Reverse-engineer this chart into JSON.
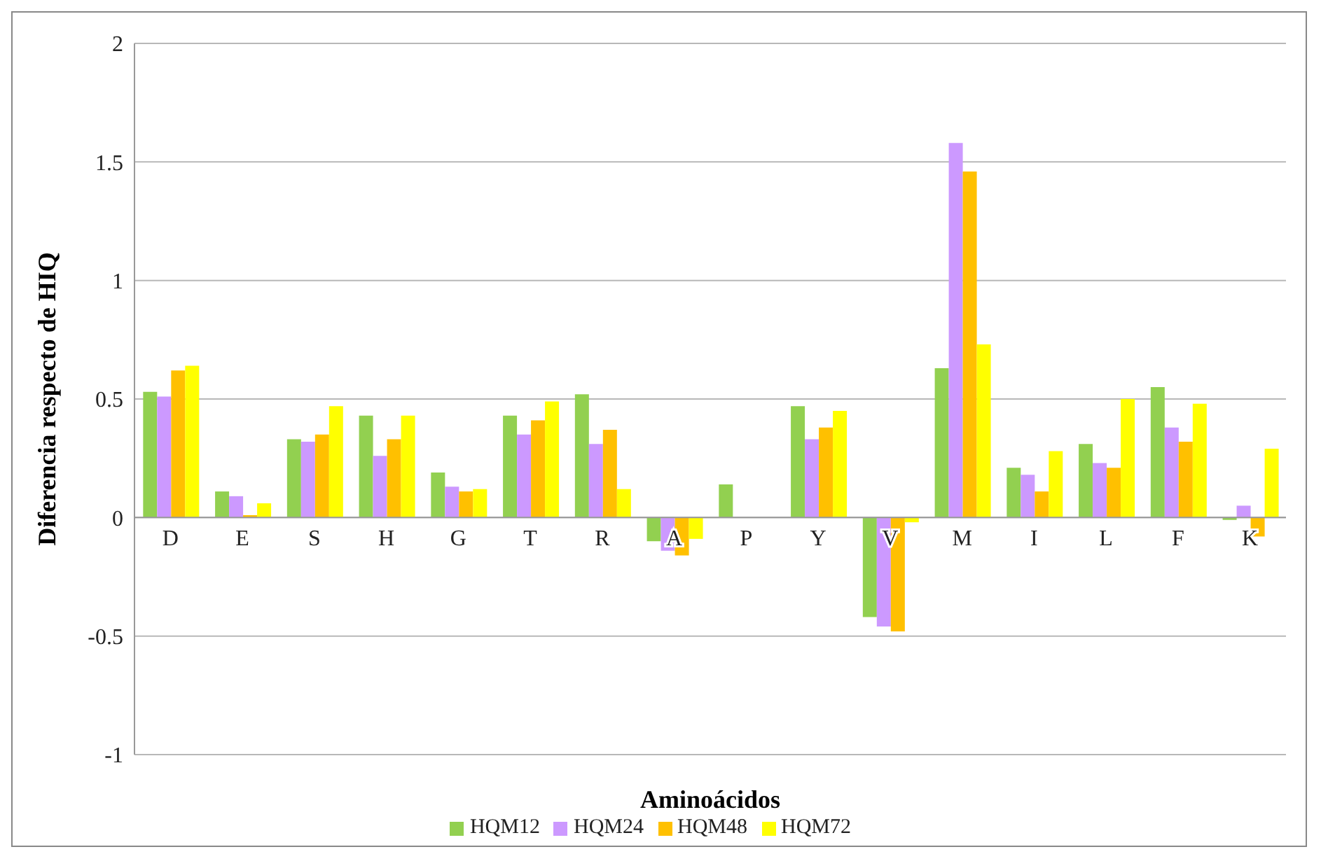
{
  "chart_data": {
    "type": "bar",
    "xlabel": "Aminoácidos",
    "ylabel": "Diferencia respecto de HIQ",
    "categories": [
      "D",
      "E",
      "S",
      "H",
      "G",
      "T",
      "R",
      "A",
      "P",
      "Y",
      "V",
      "M",
      "I",
      "L",
      "F",
      "K"
    ],
    "series": [
      {
        "name": "HQM12",
        "color": "#92d050",
        "values": [
          0.53,
          0.11,
          0.33,
          0.43,
          0.19,
          0.43,
          0.52,
          -0.1,
          0.14,
          0.47,
          -0.42,
          0.63,
          0.21,
          0.31,
          0.55,
          -0.01
        ]
      },
      {
        "name": "HQM24",
        "color": "#cc99ff",
        "values": [
          0.51,
          0.09,
          0.32,
          0.26,
          0.13,
          0.35,
          0.31,
          -0.14,
          0,
          0.33,
          -0.46,
          1.58,
          0.18,
          0.23,
          0.38,
          0.05
        ]
      },
      {
        "name": "HQM48",
        "color": "#ffc000",
        "values": [
          0.62,
          0.01,
          0.35,
          0.33,
          0.11,
          0.41,
          0.37,
          -0.16,
          0,
          0.38,
          -0.48,
          1.46,
          0.11,
          0.21,
          0.32,
          -0.08
        ]
      },
      {
        "name": "HQM72",
        "color": "#ffff00",
        "values": [
          0.64,
          0.06,
          0.47,
          0.43,
          0.12,
          0.49,
          0.12,
          -0.09,
          0,
          0.45,
          -0.02,
          0.73,
          0.28,
          0.5,
          0.48,
          0.29
        ]
      }
    ],
    "ylim": [
      -1,
      2
    ],
    "yticks": [
      -1,
      -0.5,
      0,
      0.5,
      1,
      1.5,
      2
    ],
    "grid": "y",
    "legend": "bottom"
  }
}
